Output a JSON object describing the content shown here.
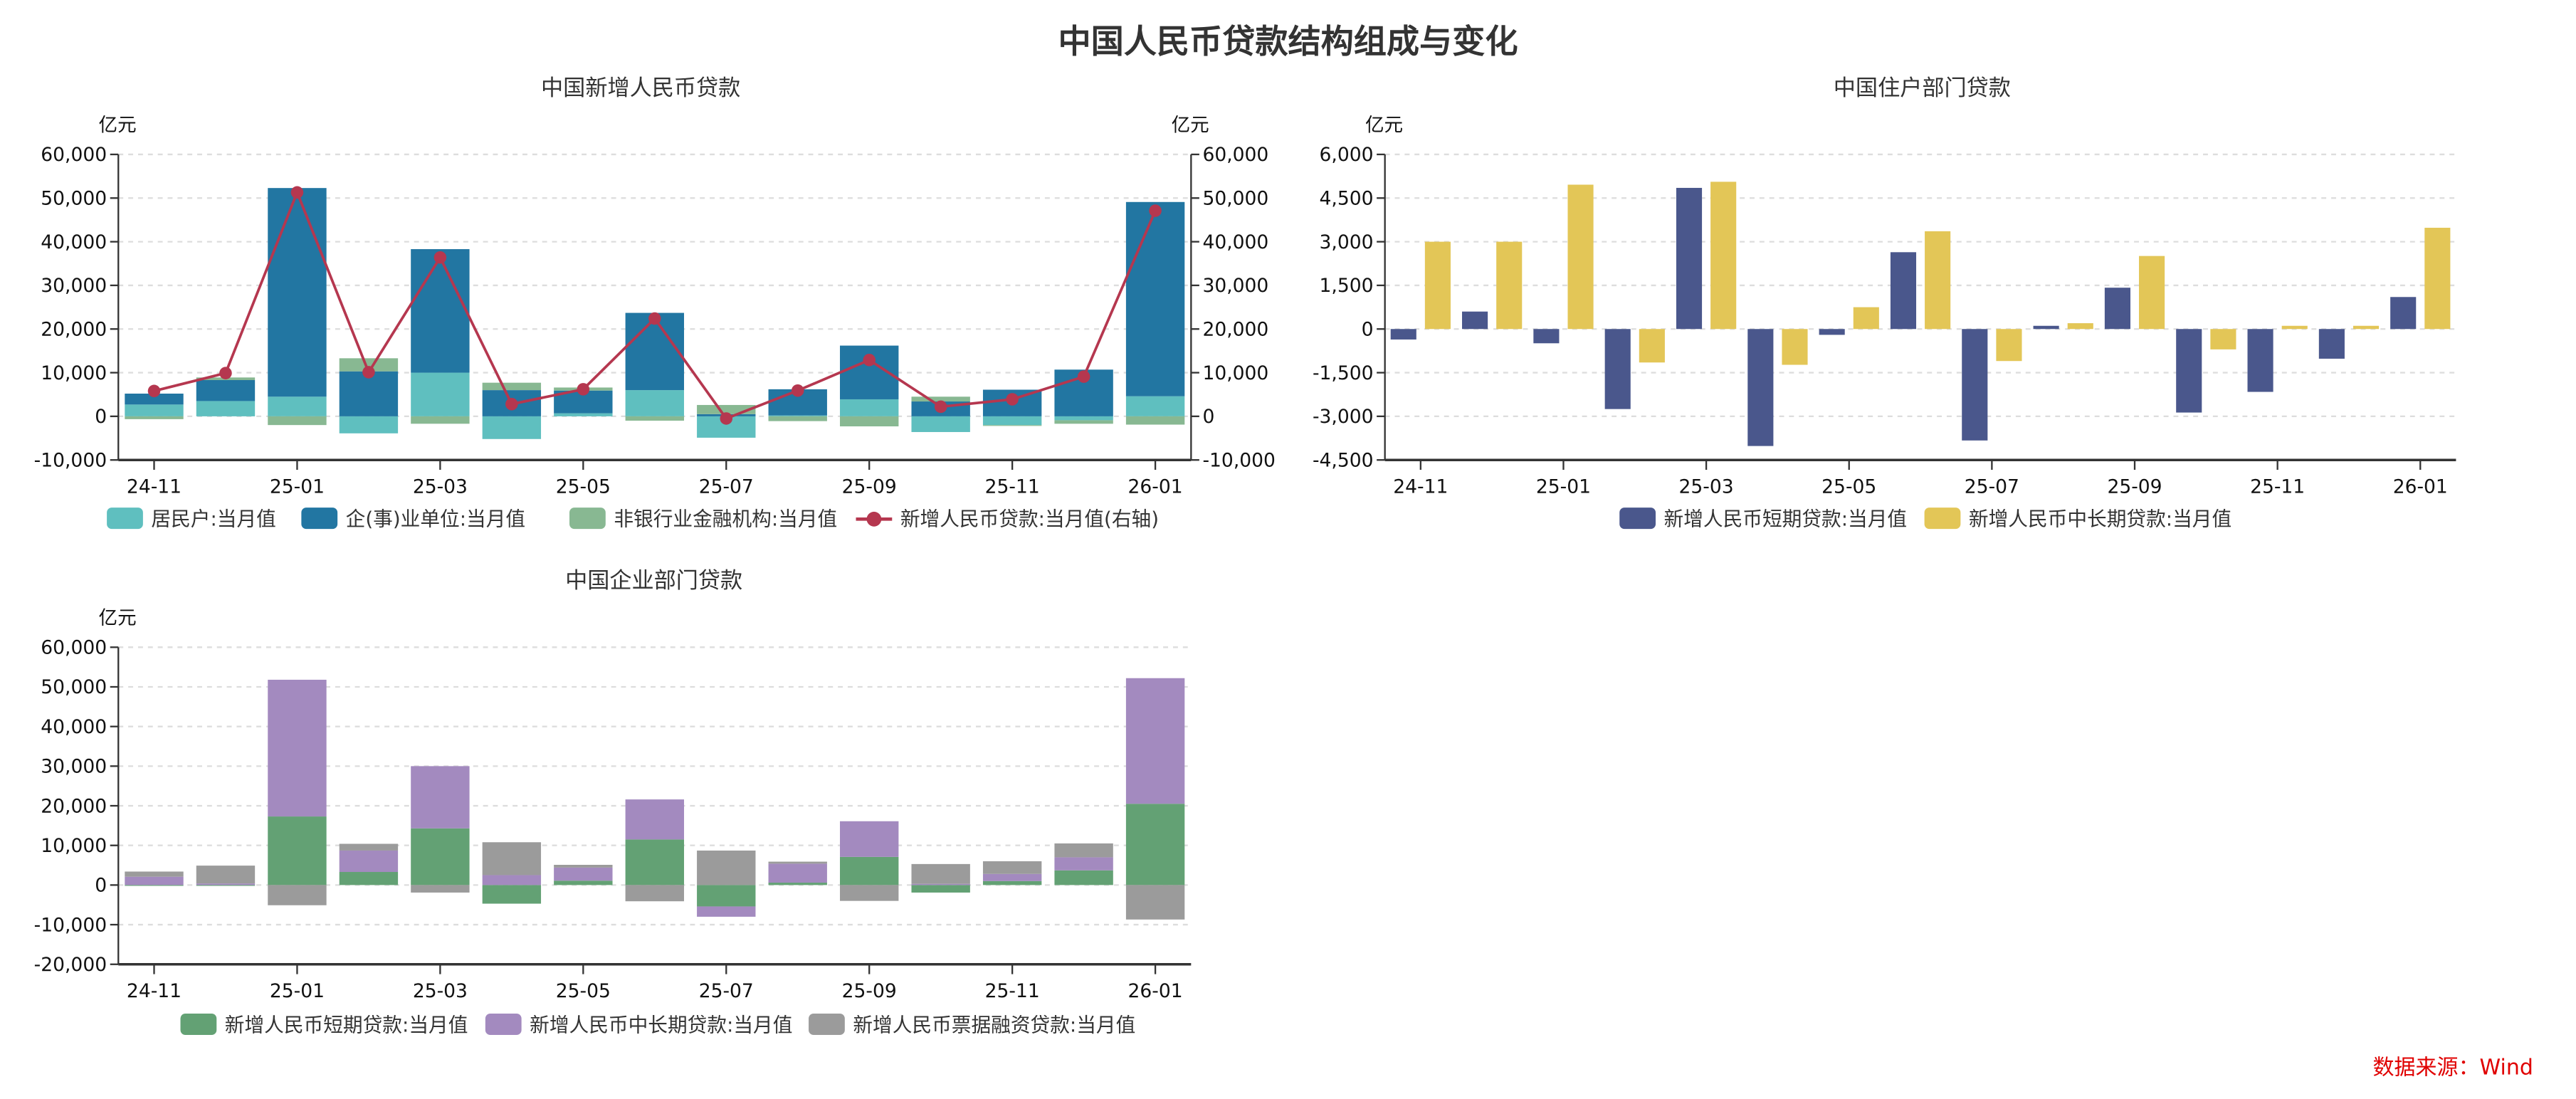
{
  "title": "中国人民币贷款结构组成与变化",
  "source": "数据来源：Wind",
  "chart_data": [
    {
      "type": "bar",
      "title": "中国新增人民币贷款",
      "ylabel": "亿元",
      "ylabel_right": "亿元",
      "ylim": [
        -10000,
        60000
      ],
      "yticks": [
        "-10,000",
        "0",
        "10,000",
        "20,000",
        "30,000",
        "40,000",
        "50,000",
        "60,000"
      ],
      "yticks_right": [
        "-10,000",
        "0",
        "10,000",
        "20,000",
        "30,000",
        "40,000",
        "50,000",
        "60,000"
      ],
      "grid": true,
      "legend": "bottom",
      "stacked": true,
      "categories": [
        "24-11",
        "24-12",
        "25-01",
        "25-02",
        "25-03",
        "25-04",
        "25-05",
        "25-06",
        "25-07",
        "25-08",
        "25-09",
        "25-10",
        "25-11",
        "25-12",
        "26-01"
      ],
      "xtick_labels": [
        "24-11",
        "25-01",
        "25-03",
        "25-05",
        "25-07",
        "25-09",
        "25-11",
        "26-01"
      ],
      "series": [
        {
          "name": "居民户:当月值",
          "kind": "bar",
          "color": "#5fbfbf",
          "values": [
            2700,
            3500,
            4500,
            -3900,
            10000,
            -5200,
            700,
            6000,
            -4900,
            200,
            3900,
            -3600,
            -2000,
            -900,
            4600
          ]
        },
        {
          "name": "企(事)业单位:当月值",
          "kind": "bar",
          "color": "#2276a2",
          "values": [
            2500,
            4800,
            47800,
            10300,
            28300,
            6000,
            5200,
            17700,
            500,
            6000,
            12300,
            3400,
            6100,
            10700,
            44500
          ]
        },
        {
          "name": "非银行业金融机构:当月值",
          "kind": "bar",
          "color": "#88b892",
          "values": [
            -650,
            600,
            -2000,
            3000,
            -1700,
            1700,
            700,
            -1000,
            2100,
            -1100,
            -2300,
            1100,
            -200,
            -800,
            -1900
          ]
        },
        {
          "name": "新增人民币贷款:当月值(右轴)",
          "kind": "line",
          "axis": "right",
          "color": "#b5374f",
          "values": [
            5800,
            9900,
            51300,
            10100,
            36400,
            2800,
            6200,
            22400,
            -500,
            5900,
            12900,
            2200,
            3900,
            9100,
            47100
          ]
        }
      ]
    },
    {
      "type": "bar",
      "title": "中国住户部门贷款",
      "ylabel": "亿元",
      "ylim": [
        -4500,
        6000
      ],
      "yticks": [
        "-4,500",
        "-3,000",
        "-1,500",
        "0",
        "1,500",
        "3,000",
        "4,500",
        "6,000"
      ],
      "grid": true,
      "legend": "bottom",
      "stacked": false,
      "categories": [
        "24-11",
        "24-12",
        "25-01",
        "25-02",
        "25-03",
        "25-04",
        "25-05",
        "25-06",
        "25-07",
        "25-08",
        "25-09",
        "25-10",
        "25-11",
        "25-12",
        "26-01"
      ],
      "xtick_labels": [
        "24-11",
        "25-01",
        "25-03",
        "25-05",
        "25-07",
        "25-09",
        "25-11",
        "26-01"
      ],
      "series": [
        {
          "name": "新增人民币短期贷款:当月值",
          "kind": "bar",
          "color": "#4a578c",
          "values": [
            -360,
            600,
            -490,
            -2750,
            4850,
            -4020,
            -200,
            2640,
            -3830,
            110,
            1420,
            -2870,
            -2160,
            -1020,
            1100
          ]
        },
        {
          "name": "新增人民币中长期贷款:当月值",
          "kind": "bar",
          "color": "#e3c657",
          "values": [
            3000,
            3000,
            4960,
            -1150,
            5060,
            -1230,
            750,
            3360,
            -1100,
            200,
            2510,
            -700,
            110,
            110,
            3480
          ]
        }
      ]
    },
    {
      "type": "bar",
      "title": "中国企业部门贷款",
      "ylabel": "亿元",
      "ylim": [
        -20000,
        60000
      ],
      "yticks": [
        "-20,000",
        "-10,000",
        "0",
        "10,000",
        "20,000",
        "30,000",
        "40,000",
        "50,000",
        "60,000"
      ],
      "grid": true,
      "legend": "bottom",
      "stacked": true,
      "categories": [
        "24-11",
        "24-12",
        "25-01",
        "25-02",
        "25-03",
        "25-04",
        "25-05",
        "25-06",
        "25-07",
        "25-08",
        "25-09",
        "25-10",
        "25-11",
        "25-12",
        "26-01"
      ],
      "xtick_labels": [
        "24-11",
        "25-01",
        "25-03",
        "25-05",
        "25-07",
        "25-09",
        "25-11",
        "26-01"
      ],
      "series": [
        {
          "name": "新增人民币短期贷款:当月值",
          "kind": "bar",
          "color": "#63a174",
          "values": [
            -100,
            -200,
            17300,
            3300,
            14300,
            -4700,
            1100,
            11500,
            -5400,
            600,
            7100,
            -1900,
            1000,
            3700,
            20500
          ]
        },
        {
          "name": "新增人民币中长期贷款:当月值",
          "kind": "bar",
          "color": "#a38abf",
          "values": [
            2100,
            400,
            34500,
            5400,
            15700,
            2500,
            3300,
            10100,
            -2600,
            4800,
            9000,
            300,
            1800,
            3300,
            31700
          ]
        },
        {
          "name": "新增人民币票据融资贷款:当月值",
          "kind": "bar",
          "color": "#9b9b9b",
          "values": [
            1300,
            4500,
            -5100,
            1700,
            -1900,
            8300,
            700,
            -4100,
            8700,
            500,
            -4000,
            5000,
            3200,
            3500,
            -8700
          ]
        }
      ]
    }
  ]
}
